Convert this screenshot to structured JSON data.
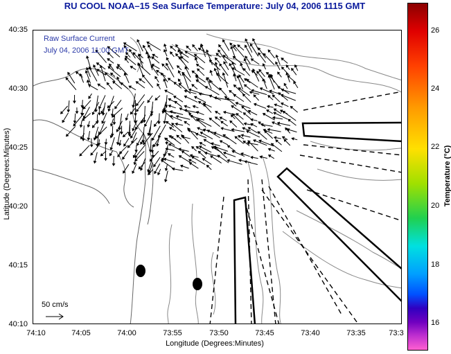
{
  "title": "RU COOL  NOAA–15  Sea Surface Temperature:  July 04, 2006 1115 GMT",
  "legend": {
    "line1": "Raw Surface Current",
    "line2": "July 04, 2006 11:00 GMT"
  },
  "scale_label": "50 cm/s",
  "xlabel": "Longitude (Degrees:Minutes)",
  "ylabel": "Latitude (Degrees:Minutes)",
  "colorbar_label": "Temperature (°C)",
  "lat_ticks": [
    "40:35",
    "40:30",
    "40:25",
    "40:20",
    "40:15",
    "40:10"
  ],
  "lon_ticks": [
    "74:10",
    "74:05",
    "74:00",
    "73:55",
    "73:50",
    "73:45",
    "73:40",
    "73:35",
    "73:3"
  ],
  "temp_ticks": [
    "26",
    "24",
    "22",
    "20",
    "18",
    "16"
  ],
  "colors": {
    "title": "#0a1a9c",
    "legend_text": "#2b3aa8",
    "contour": "#888888",
    "vectors": "#000000"
  },
  "features": {
    "dots": 2,
    "outlined_boxes": 3,
    "dashed_lines": 10
  }
}
